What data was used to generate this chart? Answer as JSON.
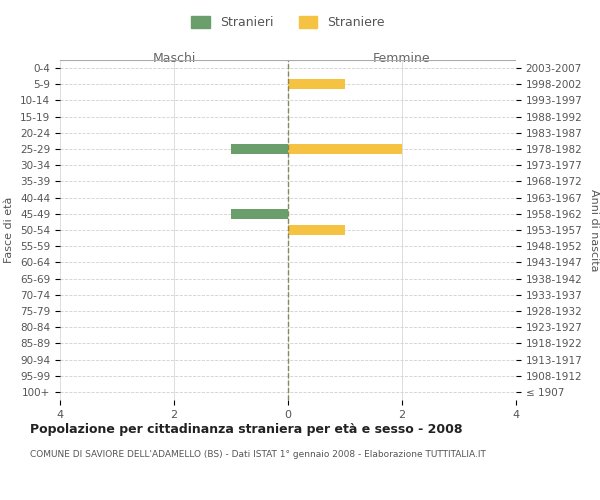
{
  "age_groups": [
    "100+",
    "95-99",
    "90-94",
    "85-89",
    "80-84",
    "75-79",
    "70-74",
    "65-69",
    "60-64",
    "55-59",
    "50-54",
    "45-49",
    "40-44",
    "35-39",
    "30-34",
    "25-29",
    "20-24",
    "15-19",
    "10-14",
    "5-9",
    "0-4"
  ],
  "birth_years": [
    "≤ 1907",
    "1908-1912",
    "1913-1917",
    "1918-1922",
    "1923-1927",
    "1928-1932",
    "1933-1937",
    "1938-1942",
    "1943-1947",
    "1948-1952",
    "1953-1957",
    "1958-1962",
    "1963-1967",
    "1968-1972",
    "1973-1977",
    "1978-1982",
    "1983-1987",
    "1988-1992",
    "1993-1997",
    "1998-2002",
    "2003-2007"
  ],
  "males": [
    0,
    0,
    0,
    0,
    0,
    0,
    0,
    0,
    0,
    0,
    0,
    1,
    0,
    0,
    0,
    1,
    0,
    0,
    0,
    0,
    0
  ],
  "females": [
    0,
    0,
    0,
    0,
    0,
    0,
    0,
    0,
    0,
    0,
    1,
    0,
    0,
    0,
    0,
    2,
    0,
    0,
    0,
    1,
    0
  ],
  "male_color": "#6a9e6a",
  "female_color": "#f5c242",
  "male_label": "Stranieri",
  "female_label": "Straniere",
  "xlabel_left": "Maschi",
  "xlabel_right": "Femmine",
  "ylabel_left": "Fasce di età",
  "ylabel_right": "Anni di nascita",
  "title": "Popolazione per cittadinanza straniera per età e sesso - 2008",
  "subtitle": "COMUNE DI SAVIORE DELL'ADAMELLO (BS) - Dati ISTAT 1° gennaio 2008 - Elaborazione TUTTITALIA.IT",
  "xlim": 4,
  "background_color": "#ffffff",
  "grid_color": "#d0d0d0"
}
